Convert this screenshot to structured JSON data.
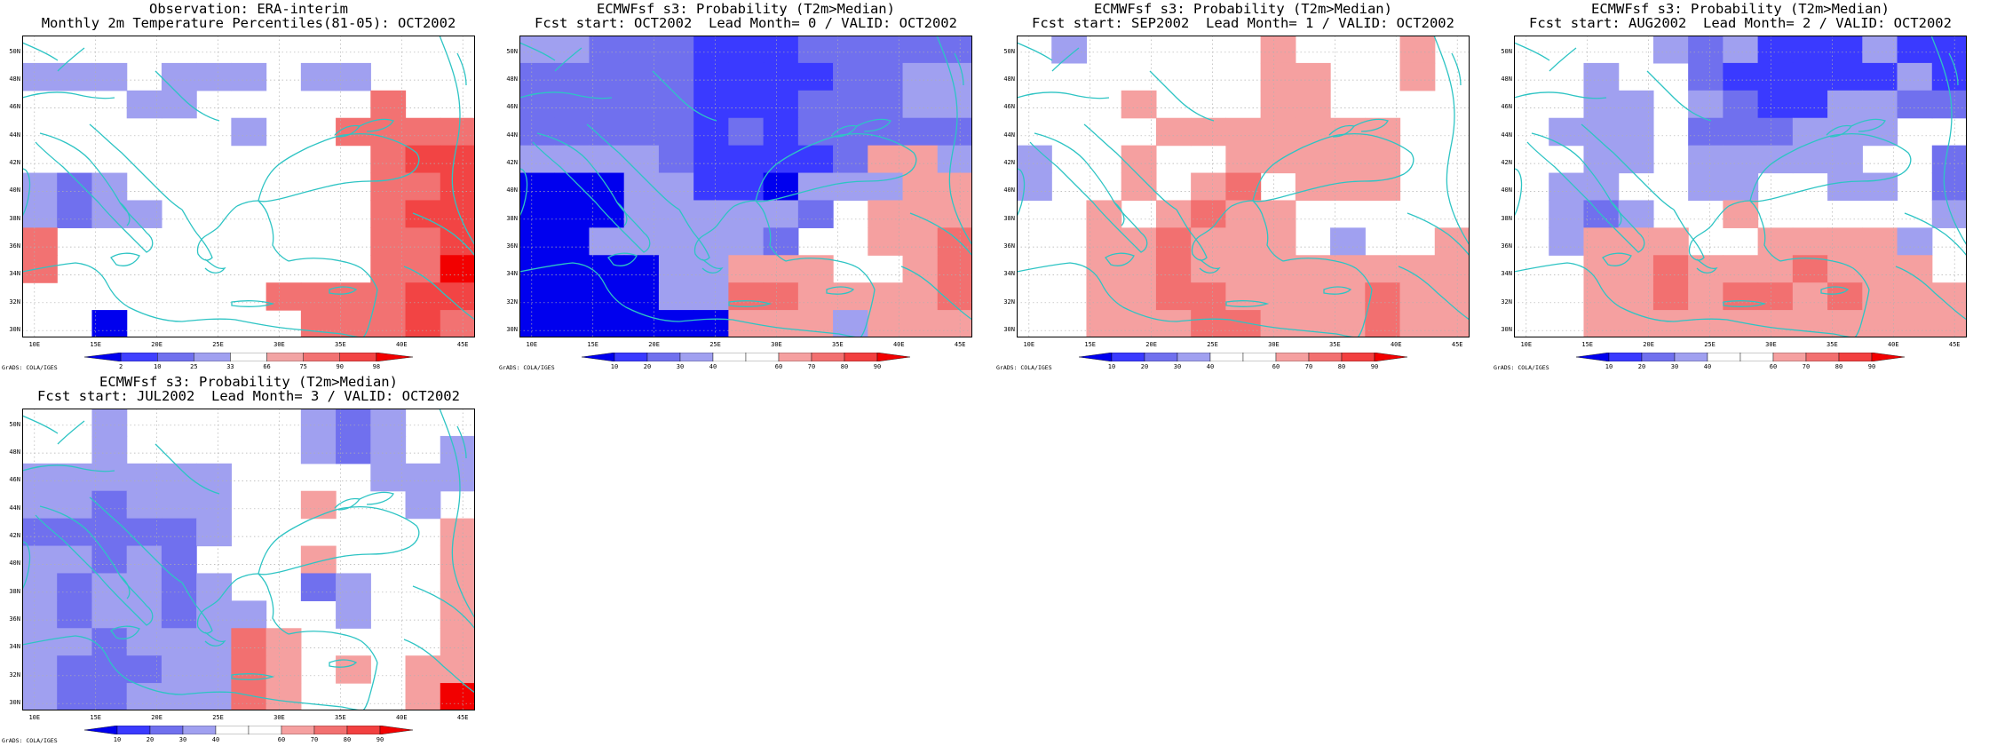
{
  "lon_labels": [
    "10E",
    "15E",
    "20E",
    "25E",
    "30E",
    "35E",
    "40E",
    "45E"
  ],
  "lat_labels": [
    "50N",
    "48N",
    "46N",
    "44N",
    "42N",
    "40N",
    "38N",
    "36N",
    "34N",
    "32N",
    "30N"
  ],
  "credit": "GrADS: COLA/IGES",
  "colors": {
    "coast": "#2ec4c4",
    "grid": "#b0b0b0",
    "scale_obs": [
      "#0000ee",
      "#4040ff",
      "#7070ee",
      "#a0a0f0",
      "#ffffff",
      "#f2a4a4",
      "#f27272",
      "#f24444",
      "#f20000"
    ],
    "scale_prob": [
      "#0000ee",
      "#3a3aff",
      "#7070ee",
      "#a0a0f0",
      "#ffffff",
      "#ffffff",
      "#f5a0a0",
      "#f27070",
      "#f24040",
      "#f20000"
    ]
  },
  "panels": [
    {
      "title1": "Observation: ERA-interim",
      "title2": "Monthly 2m Temperature Percentiles(81-05): OCT2002",
      "colorbar_ticks": [
        "2",
        "10",
        "25",
        "33",
        "66",
        "75",
        "90",
        "98"
      ],
      "colorbar_type": "obs",
      "grid_cells": [
        ".............",
        "WBB.BBB.BB...",
        "...BB.....R..",
        "......B..RRRR",
        "..........RSS",
        "BLB.......RRS",
        "BLBB......RSS",
        "R.........RRS",
        "R.........RRT",
        ".......RRRRSS",
        "..K.....RRRSR"
      ]
    },
    {
      "title1": "ECMWFsf s3: Probability (T2m>Median)",
      "title2": "Fcst start: OCT2002  Lead Month= 0 / VALID: OCT2002",
      "colorbar_ticks": [
        "10",
        "20",
        "30",
        "40",
        "60",
        "70",
        "80",
        "90"
      ],
      "colorbar_type": "prob",
      "grid_cells": [
        "BBLLLDDDLLLLL",
        "LLLLLDDDDLLBB",
        "LLLLLDDDLLLBB",
        "LLLLLDLDLLLLL",
        "BBBBLDDDDLRRB",
        "KKKBBDDKBBBRR",
        "KKKBBBBBL.RRR",
        "KKBBBBBL..RRS",
        "KKKKBBRRR..RS",
        "KKKKBBSSRRRRS",
        "KKKKKKRRRBRRR"
      ]
    },
    {
      "title1": "ECMWFsf s3: Probability (T2m>Median)",
      "title2": "Fcst start: SEP2002  Lead Month= 1 / VALID: OCT2002",
      "colorbar_ticks": [
        "10",
        "20",
        "30",
        "40",
        "60",
        "70",
        "80",
        "90"
      ],
      "colorbar_type": "prob",
      "grid_cells": [
        ".B.....R...R.",
        ".......RR..R.",
        "...P...RR....",
        "....PRRRRRR..",
        "B..P..RRRRR..",
        "B..P.RS.RRR..",
        "..R.RSRR.....",
        "..RRSRRR.B..R",
        "..RRSRRRRRRRR",
        "..RRSSRRRRSRR",
        "..RRRSSRRRSRR"
      ]
    },
    {
      "title1": "ECMWFsf s3: Probability (T2m>Median)",
      "title2": "Fcst start: AUG2002  Lead Month= 2 / VALID: OCT2002",
      "colorbar_ticks": [
        "10",
        "20",
        "30",
        "40",
        "60",
        "70",
        "80",
        "90"
      ],
      "colorbar_type": "prob",
      "grid_cells": [
        "....BLBDDDBDD",
        "..B..LDDDDDBD",
        "..BB.BLDDBBLL",
        ".BBB.LLLBBB..",
        "..BB.BBBBB..L",
        ".BB..BB..BB.L",
        ".BLB..R.....B",
        ".BRRR..RRRRB.",
        "..RRSRRRSRRR.",
        "..RRSRSSRSRRR",
        "..RRRRRRRRRRR"
      ]
    },
    {
      "title1": "ECMWFsf s3: Probability (T2m>Median)",
      "title2": "Fcst start: JUL2002  Lead Month= 3 / VALID: OCT2002",
      "colorbar_ticks": [
        "10",
        "20",
        "30",
        "40",
        "60",
        "70",
        "80",
        "90"
      ],
      "colorbar_type": "prob",
      "grid_cells": [
        "..B.....BLB..",
        "..B.....BLB.B",
        "BBBBBB....BBB",
        "BBLBBB..R..B.",
        "LLLLLB......R",
        "BBLBL...R...R",
        "BLBBLB..LB..R",
        "BLBBLBB..B..R",
        "BBLBBBSR....R",
        "BLLLBBSR.R.RR",
        "BLLBBBSR...RT"
      ]
    }
  ]
}
